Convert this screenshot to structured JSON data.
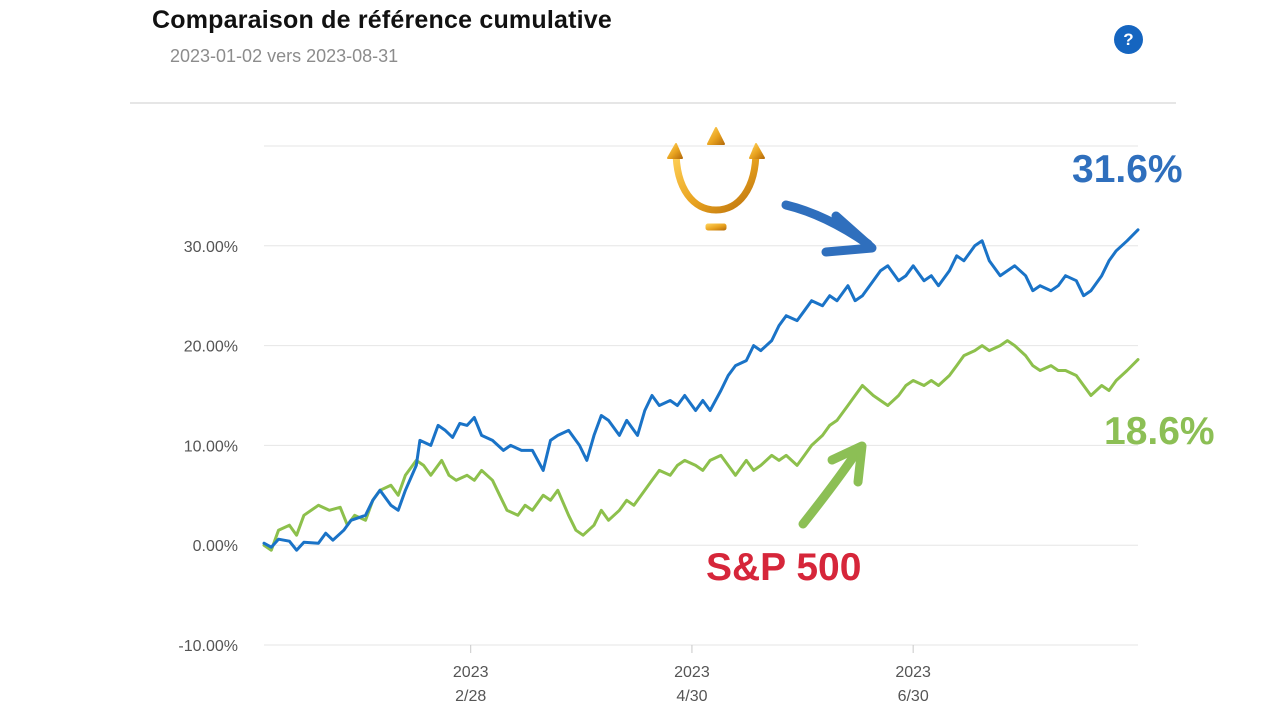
{
  "header": {
    "title": "Comparaison de référence cumulative",
    "subtitle": "2023-01-02 vers 2023-08-31",
    "help_label": "?"
  },
  "annotations": {
    "portfolio_final": "31.6%",
    "benchmark_final": "18.6%",
    "benchmark_name": "S&P 500"
  },
  "colors": {
    "portfolio": "#1a73c7",
    "benchmark": "#8dc04c",
    "portfolio_label": "#2f6fbd",
    "benchmark_label": "#8cbf55",
    "benchmark_name": "#d6263a",
    "trident": "#e8a21f"
  },
  "chart_data": {
    "type": "line",
    "title": "Comparaison de référence cumulative",
    "xlabel": "",
    "ylabel": "",
    "ylim": [
      -10,
      40
    ],
    "xlim": [
      "2023-01-02",
      "2023-08-31"
    ],
    "y_ticks": [
      "30.00%",
      "20.00%",
      "10.00%",
      "0.00%",
      "-10.00%"
    ],
    "y_tick_values": [
      30,
      20,
      10,
      0,
      -10
    ],
    "x_ticks": [
      {
        "top": "2023",
        "bottom": "2/28",
        "date": "2023-02-28"
      },
      {
        "top": "2023",
        "bottom": "4/30",
        "date": "2023-04-30"
      },
      {
        "top": "2023",
        "bottom": "6/30",
        "date": "2023-06-30"
      }
    ],
    "grid": true,
    "series": [
      {
        "color": "#1a73c7",
        "points": [
          [
            "2023-01-02",
            0.2
          ],
          [
            "2023-01-04",
            -0.2
          ],
          [
            "2023-01-06",
            0.6
          ],
          [
            "2023-01-09",
            0.4
          ],
          [
            "2023-01-11",
            -0.5
          ],
          [
            "2023-01-13",
            0.3
          ],
          [
            "2023-01-17",
            0.2
          ],
          [
            "2023-01-19",
            1.2
          ],
          [
            "2023-01-21",
            0.5
          ],
          [
            "2023-01-24",
            1.5
          ],
          [
            "2023-01-26",
            2.5
          ],
          [
            "2023-01-30",
            3.0
          ],
          [
            "2023-02-01",
            4.5
          ],
          [
            "2023-02-03",
            5.5
          ],
          [
            "2023-02-06",
            4.0
          ],
          [
            "2023-02-08",
            3.5
          ],
          [
            "2023-02-10",
            5.5
          ],
          [
            "2023-02-13",
            8.0
          ],
          [
            "2023-02-14",
            10.5
          ],
          [
            "2023-02-17",
            10.0
          ],
          [
            "2023-02-19",
            12.0
          ],
          [
            "2023-02-21",
            11.5
          ],
          [
            "2023-02-23",
            10.8
          ],
          [
            "2023-02-25",
            12.2
          ],
          [
            "2023-02-27",
            12.0
          ],
          [
            "2023-03-01",
            12.8
          ],
          [
            "2023-03-03",
            11.0
          ],
          [
            "2023-03-06",
            10.5
          ],
          [
            "2023-03-09",
            9.5
          ],
          [
            "2023-03-11",
            10.0
          ],
          [
            "2023-03-14",
            9.5
          ],
          [
            "2023-03-17",
            9.5
          ],
          [
            "2023-03-20",
            7.5
          ],
          [
            "2023-03-22",
            10.5
          ],
          [
            "2023-03-24",
            11.0
          ],
          [
            "2023-03-27",
            11.5
          ],
          [
            "2023-03-30",
            10.0
          ],
          [
            "2023-04-01",
            8.5
          ],
          [
            "2023-04-03",
            11.0
          ],
          [
            "2023-04-05",
            13.0
          ],
          [
            "2023-04-07",
            12.5
          ],
          [
            "2023-04-10",
            11.0
          ],
          [
            "2023-04-12",
            12.5
          ],
          [
            "2023-04-15",
            11.0
          ],
          [
            "2023-04-17",
            13.5
          ],
          [
            "2023-04-19",
            15.0
          ],
          [
            "2023-04-21",
            14.0
          ],
          [
            "2023-04-24",
            14.5
          ],
          [
            "2023-04-26",
            14.0
          ],
          [
            "2023-04-28",
            15.0
          ],
          [
            "2023-05-01",
            13.5
          ],
          [
            "2023-05-03",
            14.5
          ],
          [
            "2023-05-05",
            13.5
          ],
          [
            "2023-05-08",
            15.5
          ],
          [
            "2023-05-10",
            17.0
          ],
          [
            "2023-05-12",
            18.0
          ],
          [
            "2023-05-15",
            18.5
          ],
          [
            "2023-05-17",
            20.0
          ],
          [
            "2023-05-19",
            19.5
          ],
          [
            "2023-05-22",
            20.5
          ],
          [
            "2023-05-24",
            22.0
          ],
          [
            "2023-05-26",
            23.0
          ],
          [
            "2023-05-29",
            22.5
          ],
          [
            "2023-05-31",
            23.5
          ],
          [
            "2023-06-02",
            24.5
          ],
          [
            "2023-06-05",
            24.0
          ],
          [
            "2023-06-07",
            25.0
          ],
          [
            "2023-06-09",
            24.5
          ],
          [
            "2023-06-12",
            26.0
          ],
          [
            "2023-06-14",
            24.5
          ],
          [
            "2023-06-16",
            25.0
          ],
          [
            "2023-06-19",
            26.5
          ],
          [
            "2023-06-21",
            27.5
          ],
          [
            "2023-06-23",
            28.0
          ],
          [
            "2023-06-26",
            26.5
          ],
          [
            "2023-06-28",
            27.0
          ],
          [
            "2023-06-30",
            28.0
          ],
          [
            "2023-07-03",
            26.5
          ],
          [
            "2023-07-05",
            27.0
          ],
          [
            "2023-07-07",
            26.0
          ],
          [
            "2023-07-10",
            27.5
          ],
          [
            "2023-07-12",
            29.0
          ],
          [
            "2023-07-14",
            28.5
          ],
          [
            "2023-07-17",
            30.0
          ],
          [
            "2023-07-19",
            30.5
          ],
          [
            "2023-07-21",
            28.5
          ],
          [
            "2023-07-24",
            27.0
          ],
          [
            "2023-07-26",
            27.5
          ],
          [
            "2023-07-28",
            28.0
          ],
          [
            "2023-07-31",
            27.0
          ],
          [
            "2023-08-02",
            25.5
          ],
          [
            "2023-08-04",
            26.0
          ],
          [
            "2023-08-07",
            25.5
          ],
          [
            "2023-08-09",
            26.0
          ],
          [
            "2023-08-11",
            27.0
          ],
          [
            "2023-08-14",
            26.5
          ],
          [
            "2023-08-16",
            25.0
          ],
          [
            "2023-08-18",
            25.5
          ],
          [
            "2023-08-21",
            27.0
          ],
          [
            "2023-08-23",
            28.5
          ],
          [
            "2023-08-25",
            29.5
          ],
          [
            "2023-08-28",
            30.5
          ],
          [
            "2023-08-31",
            31.6
          ]
        ]
      },
      {
        "name": "S&P 500",
        "color": "#8dc04c",
        "points": [
          [
            "2023-01-02",
            0.0
          ],
          [
            "2023-01-04",
            -0.5
          ],
          [
            "2023-01-06",
            1.5
          ],
          [
            "2023-01-09",
            2.0
          ],
          [
            "2023-01-11",
            1.0
          ],
          [
            "2023-01-13",
            3.0
          ],
          [
            "2023-01-17",
            4.0
          ],
          [
            "2023-01-20",
            3.5
          ],
          [
            "2023-01-23",
            3.8
          ],
          [
            "2023-01-25",
            2.0
          ],
          [
            "2023-01-27",
            3.0
          ],
          [
            "2023-01-30",
            2.5
          ],
          [
            "2023-02-01",
            4.5
          ],
          [
            "2023-02-03",
            5.5
          ],
          [
            "2023-02-06",
            6.0
          ],
          [
            "2023-02-08",
            5.0
          ],
          [
            "2023-02-10",
            7.0
          ],
          [
            "2023-02-13",
            8.5
          ],
          [
            "2023-02-15",
            8.0
          ],
          [
            "2023-02-17",
            7.0
          ],
          [
            "2023-02-20",
            8.5
          ],
          [
            "2023-02-22",
            7.0
          ],
          [
            "2023-02-24",
            6.5
          ],
          [
            "2023-02-27",
            7.0
          ],
          [
            "2023-03-01",
            6.5
          ],
          [
            "2023-03-03",
            7.5
          ],
          [
            "2023-03-06",
            6.5
          ],
          [
            "2023-03-08",
            5.0
          ],
          [
            "2023-03-10",
            3.5
          ],
          [
            "2023-03-13",
            3.0
          ],
          [
            "2023-03-15",
            4.0
          ],
          [
            "2023-03-17",
            3.5
          ],
          [
            "2023-03-20",
            5.0
          ],
          [
            "2023-03-22",
            4.5
          ],
          [
            "2023-03-24",
            5.5
          ],
          [
            "2023-03-27",
            3.0
          ],
          [
            "2023-03-29",
            1.5
          ],
          [
            "2023-03-31",
            1.0
          ],
          [
            "2023-04-03",
            2.0
          ],
          [
            "2023-04-05",
            3.5
          ],
          [
            "2023-04-07",
            2.5
          ],
          [
            "2023-04-10",
            3.5
          ],
          [
            "2023-04-12",
            4.5
          ],
          [
            "2023-04-14",
            4.0
          ],
          [
            "2023-04-17",
            5.5
          ],
          [
            "2023-04-19",
            6.5
          ],
          [
            "2023-04-21",
            7.5
          ],
          [
            "2023-04-24",
            7.0
          ],
          [
            "2023-04-26",
            8.0
          ],
          [
            "2023-04-28",
            8.5
          ],
          [
            "2023-05-01",
            8.0
          ],
          [
            "2023-05-03",
            7.5
          ],
          [
            "2023-05-05",
            8.5
          ],
          [
            "2023-05-08",
            9.0
          ],
          [
            "2023-05-10",
            8.0
          ],
          [
            "2023-05-12",
            7.0
          ],
          [
            "2023-05-15",
            8.5
          ],
          [
            "2023-05-17",
            7.5
          ],
          [
            "2023-05-19",
            8.0
          ],
          [
            "2023-05-22",
            9.0
          ],
          [
            "2023-05-24",
            8.5
          ],
          [
            "2023-05-26",
            9.0
          ],
          [
            "2023-05-29",
            8.0
          ],
          [
            "2023-05-31",
            9.0
          ],
          [
            "2023-06-02",
            10.0
          ],
          [
            "2023-06-05",
            11.0
          ],
          [
            "2023-06-07",
            12.0
          ],
          [
            "2023-06-09",
            12.5
          ],
          [
            "2023-06-12",
            14.0
          ],
          [
            "2023-06-14",
            15.0
          ],
          [
            "2023-06-16",
            16.0
          ],
          [
            "2023-06-19",
            15.0
          ],
          [
            "2023-06-21",
            14.5
          ],
          [
            "2023-06-23",
            14.0
          ],
          [
            "2023-06-26",
            15.0
          ],
          [
            "2023-06-28",
            16.0
          ],
          [
            "2023-06-30",
            16.5
          ],
          [
            "2023-07-03",
            16.0
          ],
          [
            "2023-07-05",
            16.5
          ],
          [
            "2023-07-07",
            16.0
          ],
          [
            "2023-07-10",
            17.0
          ],
          [
            "2023-07-12",
            18.0
          ],
          [
            "2023-07-14",
            19.0
          ],
          [
            "2023-07-17",
            19.5
          ],
          [
            "2023-07-19",
            20.0
          ],
          [
            "2023-07-21",
            19.5
          ],
          [
            "2023-07-24",
            20.0
          ],
          [
            "2023-07-26",
            20.5
          ],
          [
            "2023-07-28",
            20.0
          ],
          [
            "2023-07-31",
            19.0
          ],
          [
            "2023-08-02",
            18.0
          ],
          [
            "2023-08-04",
            17.5
          ],
          [
            "2023-08-07",
            18.0
          ],
          [
            "2023-08-09",
            17.5
          ],
          [
            "2023-08-11",
            17.5
          ],
          [
            "2023-08-14",
            17.0
          ],
          [
            "2023-08-16",
            16.0
          ],
          [
            "2023-08-18",
            15.0
          ],
          [
            "2023-08-21",
            16.0
          ],
          [
            "2023-08-23",
            15.5
          ],
          [
            "2023-08-25",
            16.5
          ],
          [
            "2023-08-28",
            17.5
          ],
          [
            "2023-08-31",
            18.6
          ]
        ]
      }
    ]
  }
}
